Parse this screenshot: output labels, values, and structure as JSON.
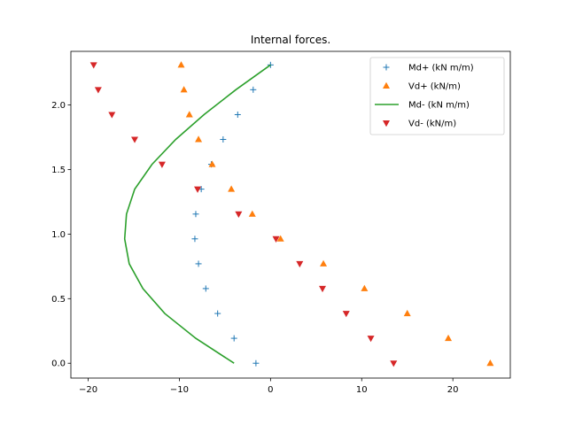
{
  "chart_data": {
    "type": "scatter",
    "title": "Internal forces.",
    "xlabel": "",
    "ylabel": "",
    "xlim": [
      -21.9,
      26.3
    ],
    "ylim": [
      -0.115,
      2.415
    ],
    "xticks": [
      -20,
      -10,
      0,
      10,
      20
    ],
    "yticks": [
      0.0,
      0.5,
      1.0,
      1.5,
      2.0
    ],
    "xtick_labels": [
      "−20",
      "−10",
      "0",
      "10",
      "20"
    ],
    "ytick_labels": [
      "0.0",
      "0.5",
      "1.0",
      "1.5",
      "2.0"
    ],
    "grid": false,
    "legend_position": "top-right",
    "series": [
      {
        "name": "Md+ (kN m/m)",
        "kind": "marker",
        "marker": "plus",
        "color": "#1f77b4",
        "x": [
          -1.6,
          -4.0,
          -5.8,
          -7.1,
          -7.9,
          -8.3,
          -8.2,
          -7.6,
          -6.5,
          -5.2,
          -3.6,
          -1.9,
          0.0
        ],
        "y": [
          0.0,
          0.193,
          0.385,
          0.578,
          0.77,
          0.963,
          1.155,
          1.348,
          1.54,
          1.733,
          1.925,
          2.118,
          2.31
        ]
      },
      {
        "name": "Vd+ (kN/m)",
        "kind": "marker",
        "marker": "triangle-up",
        "color": "#ff7f0e",
        "x": [
          24.1,
          19.5,
          15.0,
          10.3,
          5.8,
          1.1,
          -2.0,
          -4.3,
          -6.4,
          -7.9,
          -8.9,
          -9.5,
          -9.8
        ],
        "y": [
          0.0,
          0.193,
          0.385,
          0.578,
          0.77,
          0.963,
          1.155,
          1.348,
          1.54,
          1.733,
          1.925,
          2.118,
          2.31
        ]
      },
      {
        "name": "Md- (kN m/m)",
        "kind": "line",
        "color": "#2ca02c",
        "x": [
          -4.0,
          -8.2,
          -11.6,
          -14.0,
          -15.5,
          -16.0,
          -15.8,
          -14.9,
          -13.0,
          -10.4,
          -7.3,
          -3.8,
          0.0
        ],
        "y": [
          0.0,
          0.193,
          0.385,
          0.578,
          0.77,
          0.963,
          1.155,
          1.348,
          1.54,
          1.733,
          1.925,
          2.118,
          2.31
        ]
      },
      {
        "name": "Vd- (kN/m)",
        "kind": "marker",
        "marker": "triangle-down",
        "color": "#d62728",
        "x": [
          13.5,
          11.0,
          8.3,
          5.7,
          3.2,
          0.6,
          -3.5,
          -8.0,
          -11.9,
          -14.9,
          -17.4,
          -18.9,
          -19.4
        ],
        "y": [
          0.0,
          0.193,
          0.385,
          0.578,
          0.77,
          0.963,
          1.155,
          1.348,
          1.54,
          1.733,
          1.925,
          2.118,
          2.31
        ]
      }
    ]
  }
}
